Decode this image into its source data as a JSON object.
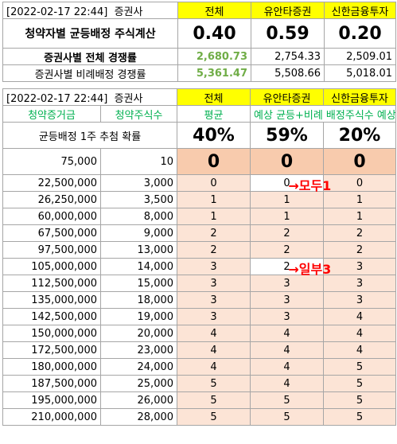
{
  "top": {
    "header": {
      "datetime": "[2022-02-17 22:44]",
      "label": "증권사",
      "col_all": "전체",
      "col_yuanta": "유안타증권",
      "col_shinhan": "신한금융투자"
    },
    "rows": [
      {
        "label": "청약자별 균등배정 주식계산",
        "values": [
          "0.40",
          "0.59",
          "0.20"
        ]
      },
      {
        "label": "증권사별 전체 경쟁률",
        "values": [
          "2,680.73",
          "2,754.33",
          "2,509.01"
        ]
      },
      {
        "label": "증권사별 비례배정 경쟁률",
        "values": [
          "5,361.47",
          "5,508.66",
          "5,018.01"
        ]
      }
    ]
  },
  "bottom": {
    "header": {
      "datetime": "[2022-02-17 22:44]",
      "label": "증권사",
      "col_all": "전체",
      "col_yuanta": "유안타증권",
      "col_shinhan": "신한금융투자"
    },
    "subheader": {
      "amount": "청약증거금",
      "shares": "청약주식수",
      "avg": "평균",
      "note": "예상 균등+비례 배정주식수 예상"
    },
    "prob_row": {
      "label": "균등배정 1주 추첨 확률",
      "values": [
        "40%",
        "59%",
        "20%"
      ]
    },
    "first_row": {
      "amount": "75,000",
      "shares": "10",
      "values": [
        "0",
        "0",
        "0"
      ]
    },
    "rows": [
      {
        "amount": "22,500,000",
        "shares": "3,000",
        "values": [
          "0",
          "0",
          "0"
        ]
      },
      {
        "amount": "26,250,000",
        "shares": "3,500",
        "values": [
          "1",
          "1",
          "1"
        ]
      },
      {
        "amount": "60,000,000",
        "shares": "8,000",
        "values": [
          "1",
          "1",
          "1"
        ]
      },
      {
        "amount": "67,500,000",
        "shares": "9,000",
        "values": [
          "2",
          "2",
          "2"
        ]
      },
      {
        "amount": "97,500,000",
        "shares": "13,000",
        "values": [
          "2",
          "2",
          "2"
        ]
      },
      {
        "amount": "105,000,000",
        "shares": "14,000",
        "values": [
          "3",
          "2",
          "3"
        ]
      },
      {
        "amount": "112,500,000",
        "shares": "15,000",
        "values": [
          "3",
          "3",
          "3"
        ]
      },
      {
        "amount": "135,000,000",
        "shares": "18,000",
        "values": [
          "3",
          "3",
          "3"
        ]
      },
      {
        "amount": "142,500,000",
        "shares": "19,000",
        "values": [
          "3",
          "3",
          "4"
        ]
      },
      {
        "amount": "150,000,000",
        "shares": "20,000",
        "values": [
          "4",
          "4",
          "4"
        ]
      },
      {
        "amount": "172,500,000",
        "shares": "23,000",
        "values": [
          "4",
          "4",
          "4"
        ]
      },
      {
        "amount": "180,000,000",
        "shares": "24,000",
        "values": [
          "4",
          "4",
          "5"
        ]
      },
      {
        "amount": "187,500,000",
        "shares": "25,000",
        "values": [
          "5",
          "4",
          "5"
        ]
      },
      {
        "amount": "195,000,000",
        "shares": "26,000",
        "values": [
          "5",
          "5",
          "5"
        ]
      },
      {
        "amount": "210,000,000",
        "shares": "28,000",
        "values": [
          "5",
          "5",
          "5"
        ]
      }
    ],
    "annotations": {
      "all": "→모두1",
      "some": "→일부3"
    }
  }
}
